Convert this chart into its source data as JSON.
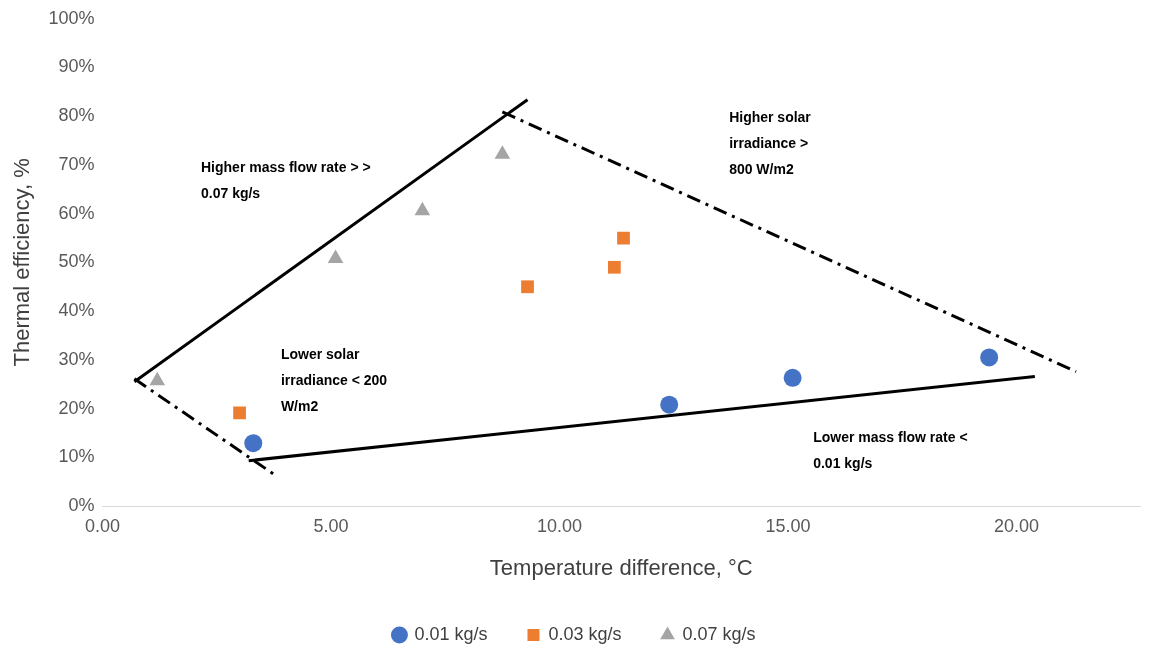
{
  "chart_data": {
    "type": "scatter",
    "xlabel": "Temperature difference, °C",
    "ylabel": "Thermal efficiency, %",
    "xlim": [
      0,
      22.7
    ],
    "ylim": [
      0,
      100
    ],
    "xticks": [
      {
        "value": 0,
        "label": "0.00"
      },
      {
        "value": 5,
        "label": "5.00"
      },
      {
        "value": 10,
        "label": "10.00"
      },
      {
        "value": 15,
        "label": "15.00"
      },
      {
        "value": 20,
        "label": "20.00"
      }
    ],
    "yticks": [
      {
        "value": 0,
        "label": "0%"
      },
      {
        "value": 10,
        "label": "10%"
      },
      {
        "value": 20,
        "label": "20%"
      },
      {
        "value": 30,
        "label": "30%"
      },
      {
        "value": 40,
        "label": "40%"
      },
      {
        "value": 50,
        "label": "50%"
      },
      {
        "value": 60,
        "label": "60%"
      },
      {
        "value": 70,
        "label": "70%"
      },
      {
        "value": 80,
        "label": "80%"
      },
      {
        "value": 90,
        "label": "90%"
      },
      {
        "value": 100,
        "label": "100%"
      }
    ],
    "grid": false,
    "legend": "bottom",
    "series": [
      {
        "name": "0.01 kg/s",
        "color": "#4472c4",
        "marker": "circle",
        "x": [
          3.3,
          12.4,
          15.1,
          19.4
        ],
        "values": [
          12.9,
          20.8,
          26.3,
          30.5
        ]
      },
      {
        "name": "0.03 kg/s",
        "color": "#ed7d31",
        "marker": "square",
        "x": [
          3.0,
          9.3,
          11.2,
          11.4
        ],
        "values": [
          19.1,
          45,
          49,
          55
        ]
      },
      {
        "name": "0.07 kg/s",
        "color": "#a5a5a5",
        "marker": "triangle",
        "x": [
          1.2,
          5.1,
          7.0,
          8.75
        ],
        "values": [
          25.7,
          50.8,
          60.6,
          72.2
        ]
      },
      {
        "type": "line",
        "color": "#000000",
        "marker": "none",
        "line_style": "solid",
        "x": [
          0.7,
          9.3
        ],
        "values": [
          25.5,
          83.4
        ]
      },
      {
        "type": "line",
        "color": "#000000",
        "marker": "none",
        "line_style": "solid",
        "x": [
          3.2,
          20.4
        ],
        "values": [
          9.3,
          26.6
        ]
      },
      {
        "type": "line",
        "color": "#000000",
        "marker": "none",
        "line_style": "dashed",
        "x": [
          8.75,
          21.3
        ],
        "values": [
          80.9,
          27.6
        ]
      },
      {
        "type": "line",
        "color": "#000000",
        "marker": "none",
        "line_style": "dashed",
        "x": [
          0.7,
          3.8
        ],
        "values": [
          26.1,
          6.2
        ]
      }
    ],
    "annotations": [
      "Higher mass flow rate > >\n0.07 kg/s",
      "Higher solar\nirradiance >\n800 W/m2",
      "Lower solar\nirradiance < 200\nW/m2",
      "Lower mass flow rate <\n0.01 kg/s"
    ]
  }
}
